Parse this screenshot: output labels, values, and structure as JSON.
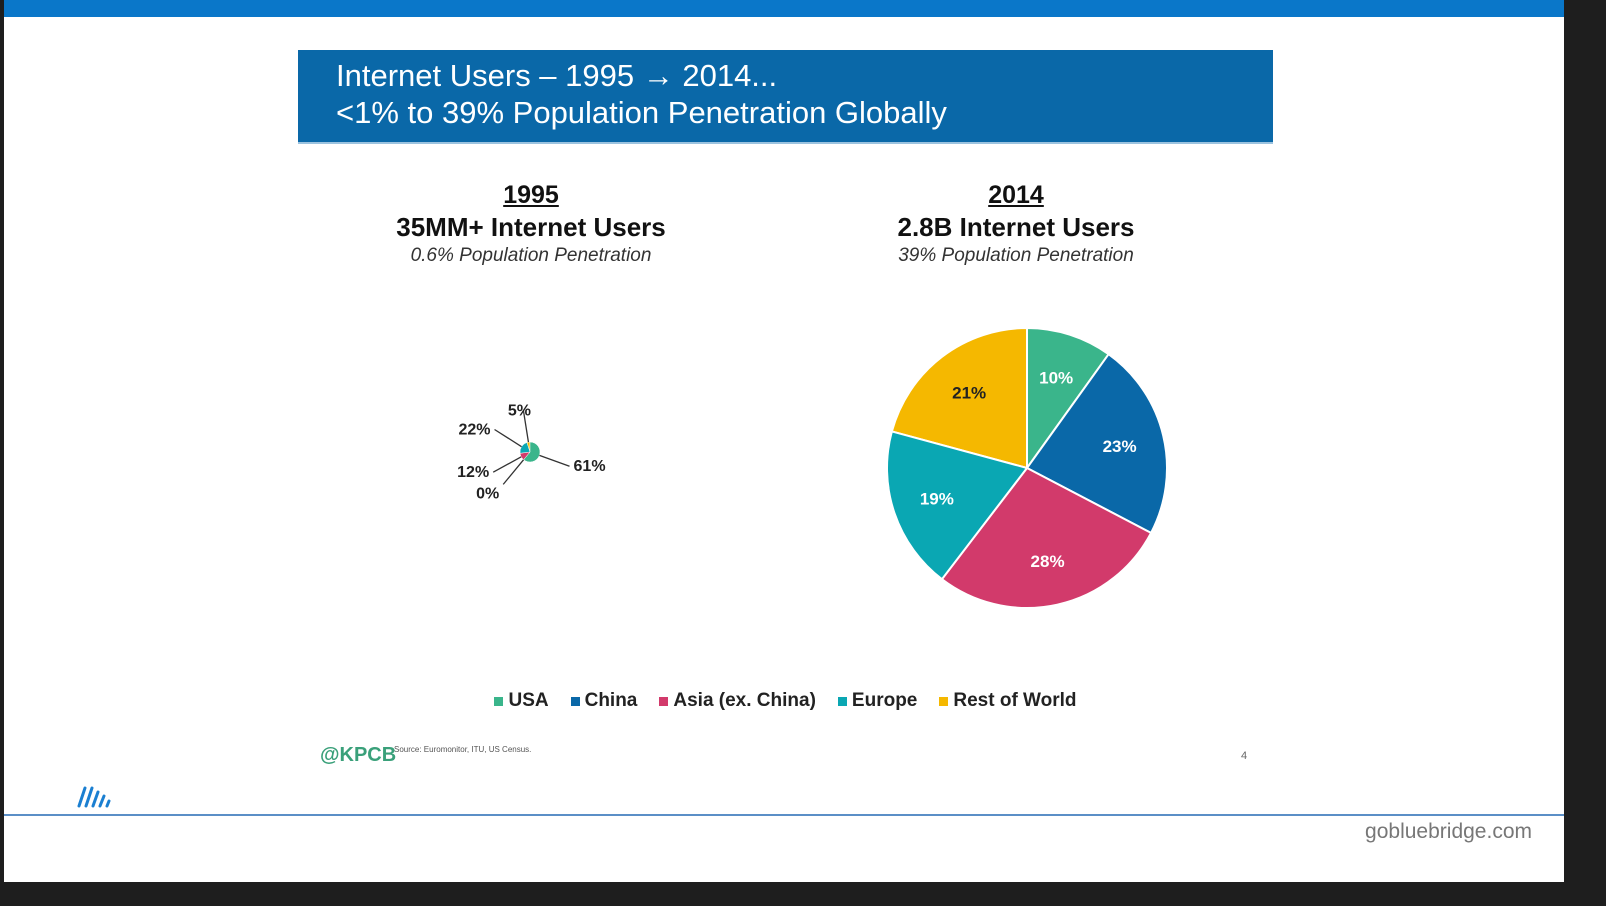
{
  "header": {
    "title_line1": "Internet Users – 1995 → 2014...",
    "title_line2": "<1% to 39% Population Penetration Globally"
  },
  "panels": [
    {
      "year": "1995",
      "users": "35MM+ Internet Users",
      "penetration": "0.6% Population Penetration"
    },
    {
      "year": "2014",
      "users": "2.8B Internet Users",
      "penetration": "39% Population Penetration"
    }
  ],
  "chart_data": [
    {
      "type": "pie",
      "title": "1995",
      "categories": [
        "USA",
        "China",
        "Asia (ex. China)",
        "Europe",
        "Rest of World"
      ],
      "values": [
        61,
        0,
        12,
        22,
        5
      ],
      "labels": [
        "61%",
        "0%",
        "12%",
        "22%",
        "5%"
      ]
    },
    {
      "type": "pie",
      "title": "2014",
      "categories": [
        "USA",
        "China",
        "Asia (ex. China)",
        "Europe",
        "Rest of World"
      ],
      "values": [
        10,
        23,
        28,
        19,
        21
      ],
      "labels": [
        "10%",
        "23%",
        "28%",
        "19%",
        "21%"
      ]
    }
  ],
  "colors": {
    "USA": "#3ab58b",
    "China": "#0a68a8",
    "Asia (ex. China)": "#d23a6b",
    "Europe": "#0aa7b3",
    "Rest of World": "#f5b800"
  },
  "legend": [
    "USA",
    "China",
    "Asia (ex. China)",
    "Europe",
    "Rest of World"
  ],
  "footer": {
    "brand": "@KPCB",
    "source": "Source: Euromonitor, ITU, US Census.",
    "page": "4",
    "site": "gobluebridge.com",
    "logo_icon": "bluebridge-logo-icon"
  }
}
